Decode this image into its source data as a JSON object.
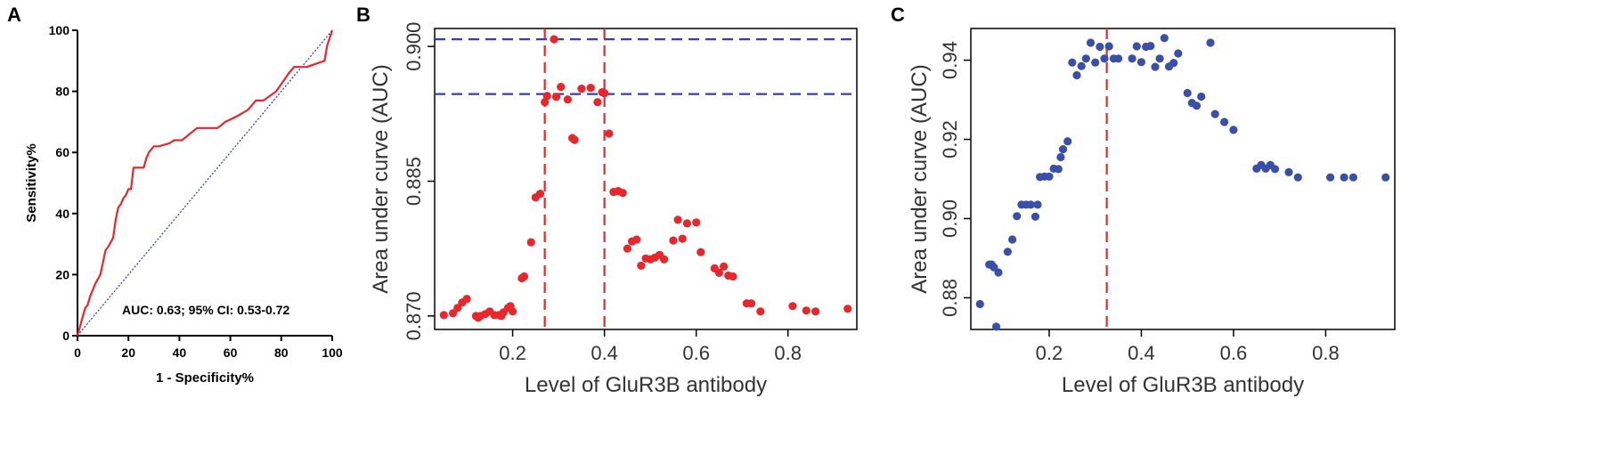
{
  "chart_data": [
    {
      "panel": "A",
      "type": "line",
      "xlabel": "1 - Specificity%",
      "ylabel": "Sensitivity%",
      "xlim": [
        0,
        100
      ],
      "ylim": [
        0,
        100
      ],
      "xticks": [
        0,
        20,
        40,
        60,
        80,
        100
      ],
      "yticks": [
        0,
        20,
        40,
        60,
        80,
        100
      ],
      "annotation": "AUC: 0.63; 95% CI: 0.53-0.72",
      "colors": {
        "roc": "#e8262b",
        "reference": "#3b3bb0"
      },
      "series": [
        {
          "style": "solid",
          "x": [
            0,
            2,
            3,
            4,
            5,
            6,
            7,
            9,
            11,
            12,
            14,
            15,
            16,
            17,
            18,
            19,
            20,
            21,
            22,
            22,
            26,
            27,
            28,
            30,
            32,
            36,
            38,
            41,
            44,
            47,
            52,
            55,
            58,
            63,
            67,
            70,
            73,
            78,
            83,
            85,
            90,
            97,
            98,
            100
          ],
          "y": [
            0,
            6,
            9,
            10,
            13,
            15,
            17,
            20,
            28,
            29,
            32,
            38,
            42,
            43,
            45,
            46,
            48,
            48,
            55,
            55,
            55,
            58,
            60,
            62,
            62,
            63,
            64,
            64,
            66,
            68,
            68,
            68,
            70,
            72,
            74,
            77,
            77,
            80,
            86,
            88,
            88,
            90,
            95,
            100
          ]
        },
        {
          "style": "dotted",
          "x": [
            0,
            100
          ],
          "y": [
            0,
            100
          ]
        }
      ]
    },
    {
      "panel": "B",
      "type": "scatter",
      "xlabel": "Level of GluR3B antibody",
      "ylabel": "Area under curve (AUC)",
      "xlim": [
        0.03,
        0.95
      ],
      "ylim": [
        0.8685,
        0.902
      ],
      "xticks": [
        "0.2",
        "0.4",
        "0.6",
        "0.8"
      ],
      "yticks": [
        "0.870",
        "0.885",
        "0.900"
      ],
      "colors": {
        "points": "#e8262b",
        "vlines": "#e8262b",
        "hlines": "#3b3bb0"
      },
      "vlines": [
        0.27,
        0.4
      ],
      "hlines": [
        0.9008,
        0.8947
      ],
      "x": [
        0.05,
        0.07,
        0.08,
        0.09,
        0.1,
        0.12,
        0.125,
        0.13,
        0.14,
        0.15,
        0.16,
        0.17,
        0.175,
        0.18,
        0.19,
        0.195,
        0.2,
        0.22,
        0.225,
        0.24,
        0.25,
        0.26,
        0.27,
        0.275,
        0.29,
        0.295,
        0.305,
        0.32,
        0.33,
        0.335,
        0.35,
        0.37,
        0.385,
        0.395,
        0.4,
        0.41,
        0.42,
        0.43,
        0.44,
        0.45,
        0.46,
        0.47,
        0.48,
        0.49,
        0.5,
        0.51,
        0.52,
        0.53,
        0.55,
        0.56,
        0.57,
        0.58,
        0.6,
        0.61,
        0.64,
        0.65,
        0.66,
        0.67,
        0.68,
        0.71,
        0.72,
        0.74,
        0.81,
        0.84,
        0.86,
        0.93
      ],
      "y": [
        0.8701,
        0.8703,
        0.8709,
        0.8715,
        0.8719,
        0.87,
        0.8698,
        0.87,
        0.8702,
        0.8705,
        0.8701,
        0.8701,
        0.87,
        0.8704,
        0.8709,
        0.8711,
        0.8705,
        0.8742,
        0.8744,
        0.8782,
        0.8832,
        0.8836,
        0.8938,
        0.8945,
        0.9008,
        0.8944,
        0.8955,
        0.8941,
        0.8898,
        0.8896,
        0.8953,
        0.8954,
        0.8938,
        0.8949,
        0.8948,
        0.8903,
        0.8838,
        0.8839,
        0.8837,
        0.8775,
        0.8783,
        0.8785,
        0.8756,
        0.8764,
        0.8763,
        0.8765,
        0.8768,
        0.8763,
        0.8784,
        0.8807,
        0.8786,
        0.8803,
        0.8804,
        0.8771,
        0.8753,
        0.8748,
        0.8755,
        0.8745,
        0.8744,
        0.8714,
        0.8714,
        0.8705,
        0.8711,
        0.8706,
        0.8705,
        0.8708
      ]
    },
    {
      "panel": "C",
      "type": "scatter",
      "xlabel": "Level of GluR3B antibody",
      "ylabel": "Area under curve (AUC)",
      "xlim": [
        0.03,
        0.95
      ],
      "ylim": [
        0.872,
        0.948
      ],
      "xticks": [
        "0.2",
        "0.4",
        "0.6",
        "0.8"
      ],
      "yticks": [
        "0.88",
        "0.90",
        "0.92",
        "0.94"
      ],
      "colors": {
        "points": "#3a4fa8",
        "vline": "#e8262b"
      },
      "vline": 0.325,
      "x": [
        0.05,
        0.07,
        0.075,
        0.08,
        0.085,
        0.09,
        0.11,
        0.12,
        0.13,
        0.14,
        0.15,
        0.16,
        0.17,
        0.175,
        0.18,
        0.19,
        0.2,
        0.21,
        0.22,
        0.225,
        0.23,
        0.24,
        0.25,
        0.26,
        0.27,
        0.28,
        0.29,
        0.3,
        0.31,
        0.32,
        0.33,
        0.34,
        0.35,
        0.38,
        0.39,
        0.4,
        0.41,
        0.42,
        0.43,
        0.44,
        0.45,
        0.46,
        0.47,
        0.48,
        0.5,
        0.51,
        0.52,
        0.53,
        0.55,
        0.56,
        0.58,
        0.6,
        0.65,
        0.66,
        0.67,
        0.68,
        0.69,
        0.72,
        0.74,
        0.81,
        0.84,
        0.86,
        0.93
      ],
      "y": [
        0.8784,
        0.8884,
        0.8884,
        0.8877,
        0.8727,
        0.8864,
        0.8916,
        0.8947,
        0.9006,
        0.9035,
        0.9035,
        0.9035,
        0.9005,
        0.9035,
        0.9105,
        0.9106,
        0.9106,
        0.9126,
        0.9125,
        0.9155,
        0.9175,
        0.9195,
        0.9394,
        0.9362,
        0.9385,
        0.9404,
        0.9444,
        0.9394,
        0.9434,
        0.9404,
        0.9435,
        0.9404,
        0.9404,
        0.9404,
        0.9435,
        0.9395,
        0.9434,
        0.9436,
        0.9383,
        0.9404,
        0.9456,
        0.9384,
        0.9393,
        0.9417,
        0.9317,
        0.9292,
        0.9285,
        0.9308,
        0.9444,
        0.9264,
        0.9244,
        0.9224,
        0.9126,
        0.9135,
        0.9126,
        0.9135,
        0.9125,
        0.9117,
        0.9104,
        0.9104,
        0.9104,
        0.9104,
        0.9104
      ]
    }
  ]
}
